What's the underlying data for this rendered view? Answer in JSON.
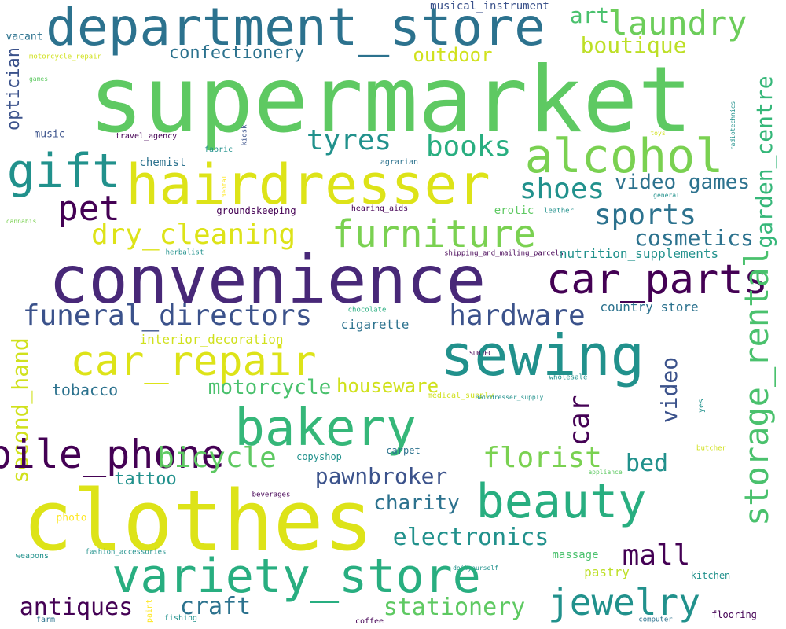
{
  "word_cloud": {
    "background": "#ffffff",
    "palette": [
      "#440154",
      "#3b528b",
      "#21918c",
      "#5ec962",
      "#fde725"
    ],
    "words": [
      {
        "text": "supermarket",
        "color": "#5ec962",
        "vertical": false
      },
      {
        "text": "department_store",
        "color": "#2c728e",
        "vertical": false
      },
      {
        "text": "hairdresser",
        "color": "#dde318",
        "vertical": false
      },
      {
        "text": "alcohol",
        "color": "#7ad151",
        "vertical": false
      },
      {
        "text": "gift",
        "color": "#21918c",
        "vertical": false
      },
      {
        "text": "laundry",
        "color": "#6ccd5a",
        "vertical": false
      },
      {
        "text": "art",
        "color": "#4ac16d",
        "vertical": false
      },
      {
        "text": "boutique",
        "color": "#bddf26",
        "vertical": false
      },
      {
        "text": "outdoor",
        "color": "#d0e11c",
        "vertical": false
      },
      {
        "text": "confectionery",
        "color": "#2c728e",
        "vertical": false
      },
      {
        "text": "musical_instrument",
        "color": "#3b528b",
        "vertical": false
      },
      {
        "text": "optician",
        "color": "#3b528b",
        "vertical": true
      },
      {
        "text": "vacant",
        "color": "#2c728e",
        "vertical": false
      },
      {
        "text": "motorcycle_repair",
        "color": "#d0e11c",
        "vertical": false
      },
      {
        "text": "games",
        "color": "#5ec962",
        "vertical": false
      },
      {
        "text": "music",
        "color": "#3b528b",
        "vertical": false
      },
      {
        "text": "travel_agency",
        "color": "#440154",
        "vertical": false
      },
      {
        "text": "fabric",
        "color": "#21918c",
        "vertical": false
      },
      {
        "text": "kiosk",
        "color": "#3b528b",
        "vertical": true
      },
      {
        "text": "chemist",
        "color": "#2c728e",
        "vertical": false
      },
      {
        "text": "dental",
        "color": "#fde725",
        "vertical": true
      },
      {
        "text": "agrarian",
        "color": "#2c728e",
        "vertical": false
      },
      {
        "text": "tyres",
        "color": "#21918c",
        "vertical": false
      },
      {
        "text": "books",
        "color": "#28ae80",
        "vertical": false
      },
      {
        "text": "shoes",
        "color": "#21918c",
        "vertical": false
      },
      {
        "text": "video_games",
        "color": "#2c728e",
        "vertical": false
      },
      {
        "text": "garden_centre",
        "color": "#35b779",
        "vertical": true
      },
      {
        "text": "radiotechnics",
        "color": "#21918c",
        "vertical": true
      },
      {
        "text": "toys",
        "color": "#d0e11c",
        "vertical": false
      },
      {
        "text": "general",
        "color": "#21918c",
        "vertical": false
      },
      {
        "text": "pet",
        "color": "#440154",
        "vertical": false
      },
      {
        "text": "sports",
        "color": "#2c728e",
        "vertical": false
      },
      {
        "text": "furniture",
        "color": "#7ad151",
        "vertical": false
      },
      {
        "text": "dry_cleaning",
        "color": "#dde318",
        "vertical": false
      },
      {
        "text": "cosmetics",
        "color": "#2c728e",
        "vertical": false
      },
      {
        "text": "cannabis",
        "color": "#7ad151",
        "vertical": false
      },
      {
        "text": "groundskeeping",
        "color": "#440154",
        "vertical": false
      },
      {
        "text": "hearing_aids",
        "color": "#440154",
        "vertical": false
      },
      {
        "text": "erotic",
        "color": "#5ec962",
        "vertical": false
      },
      {
        "text": "leather",
        "color": "#21918c",
        "vertical": false
      },
      {
        "text": "herbalist",
        "color": "#21918c",
        "vertical": false
      },
      {
        "text": "shipping_and_mailing_parcels",
        "color": "#440154",
        "vertical": false
      },
      {
        "text": "nutrition_supplements",
        "color": "#21918c",
        "vertical": false
      },
      {
        "text": "convenience",
        "color": "#482878",
        "vertical": false
      },
      {
        "text": "car_parts",
        "color": "#440154",
        "vertical": false
      },
      {
        "text": "hardware",
        "color": "#3b528b",
        "vertical": false
      },
      {
        "text": "country_store",
        "color": "#2c728e",
        "vertical": false
      },
      {
        "text": "funeral_directors",
        "color": "#3b528b",
        "vertical": false
      },
      {
        "text": "cigarette",
        "color": "#2c728e",
        "vertical": false
      },
      {
        "text": "chocolate",
        "color": "#28ae80",
        "vertical": false
      },
      {
        "text": "interior_decoration",
        "color": "#d0e11c",
        "vertical": false
      },
      {
        "text": "storage_rental",
        "color": "#4ac16d",
        "vertical": true
      },
      {
        "text": "second_hand",
        "color": "#d0e11c",
        "vertical": true
      },
      {
        "text": "doityourself",
        "color": "#21918c",
        "vertical": false
      },
      {
        "text": "car_repair",
        "color": "#dde318",
        "vertical": false
      },
      {
        "text": "sewing",
        "color": "#21918c",
        "vertical": false
      },
      {
        "text": "SUBJECT",
        "color": "#440154",
        "vertical": false
      },
      {
        "text": "wholesale",
        "color": "#21918c",
        "vertical": false
      },
      {
        "text": "tobacco",
        "color": "#2c728e",
        "vertical": false
      },
      {
        "text": "motorcycle",
        "color": "#4ac16d",
        "vertical": false
      },
      {
        "text": "houseware",
        "color": "#d0e11c",
        "vertical": false
      },
      {
        "text": "video",
        "color": "#3b528b",
        "vertical": true
      },
      {
        "text": "medical_supply",
        "color": "#d0e11c",
        "vertical": false
      },
      {
        "text": "hairdresser_supply",
        "color": "#21918c",
        "vertical": false
      },
      {
        "text": "yes",
        "color": "#21918c",
        "vertical": true
      },
      {
        "text": "mobile_phone",
        "color": "#440154",
        "vertical": false
      },
      {
        "text": "bakery",
        "color": "#35b779",
        "vertical": false
      },
      {
        "text": "car",
        "color": "#440154",
        "vertical": true
      },
      {
        "text": "bicycle",
        "color": "#5ec962",
        "vertical": false
      },
      {
        "text": "florist",
        "color": "#7ad151",
        "vertical": false
      },
      {
        "text": "copyshop",
        "color": "#21918c",
        "vertical": false
      },
      {
        "text": "carpet",
        "color": "#2c728e",
        "vertical": false
      },
      {
        "text": "butcher",
        "color": "#d0e11c",
        "vertical": false
      },
      {
        "text": "appliance",
        "color": "#5ec962",
        "vertical": false
      },
      {
        "text": "bed",
        "color": "#21918c",
        "vertical": false
      },
      {
        "text": "tattoo",
        "color": "#21918c",
        "vertical": false
      },
      {
        "text": "pawnbroker",
        "color": "#3b528b",
        "vertical": false
      },
      {
        "text": "charity",
        "color": "#2c728e",
        "vertical": false
      },
      {
        "text": "beverages",
        "color": "#440154",
        "vertical": false
      },
      {
        "text": "clothes",
        "color": "#dde318",
        "vertical": false
      },
      {
        "text": "beauty",
        "color": "#28ae80",
        "vertical": false
      },
      {
        "text": "photo",
        "color": "#fde725",
        "vertical": false
      },
      {
        "text": "electronics",
        "color": "#21918c",
        "vertical": false
      },
      {
        "text": "weapons",
        "color": "#21918c",
        "vertical": false
      },
      {
        "text": "fashion_accessories",
        "color": "#21918c",
        "vertical": false
      },
      {
        "text": "variety_store",
        "color": "#28ae80",
        "vertical": false
      },
      {
        "text": "mall",
        "color": "#440154",
        "vertical": false
      },
      {
        "text": "massage",
        "color": "#4ac16d",
        "vertical": false
      },
      {
        "text": "pastry",
        "color": "#bddf26",
        "vertical": false
      },
      {
        "text": "kitchen",
        "color": "#21918c",
        "vertical": false
      },
      {
        "text": "jewelry",
        "color": "#21918c",
        "vertical": false
      },
      {
        "text": "antiques",
        "color": "#440154",
        "vertical": false
      },
      {
        "text": "craft",
        "color": "#2c728e",
        "vertical": false
      },
      {
        "text": "stationery",
        "color": "#5ec962",
        "vertical": false
      },
      {
        "text": "paint",
        "color": "#fde725",
        "vertical": true
      },
      {
        "text": "fishing",
        "color": "#21918c",
        "vertical": false
      },
      {
        "text": "farm",
        "color": "#2c728e",
        "vertical": false
      },
      {
        "text": "coffee",
        "color": "#440154",
        "vertical": false
      },
      {
        "text": "computer",
        "color": "#2c728e",
        "vertical": false
      },
      {
        "text": "flooring",
        "color": "#440154",
        "vertical": false
      }
    ]
  }
}
